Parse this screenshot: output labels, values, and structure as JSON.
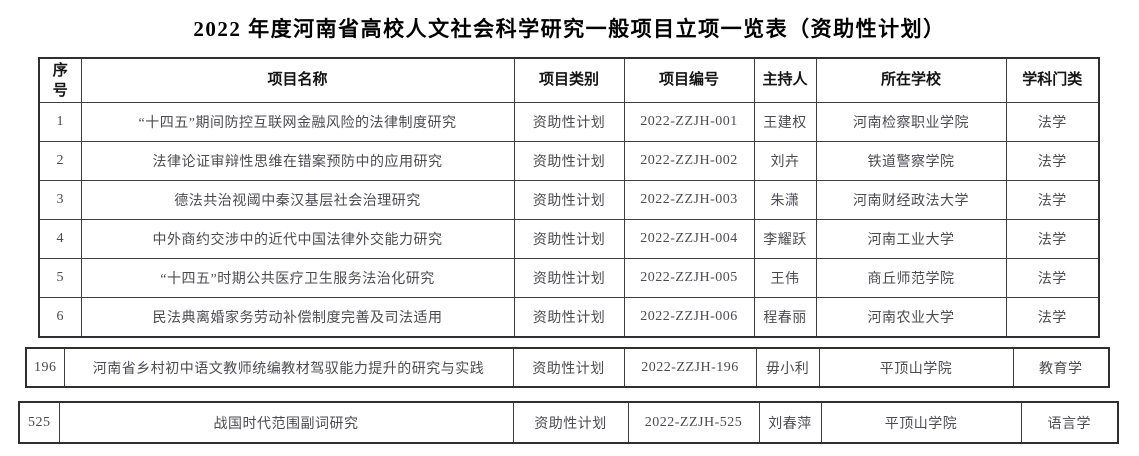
{
  "doc": {
    "title": "2022 年度河南省高校人文社会科学研究一般项目立项一览表（资助性计划）"
  },
  "table": {
    "headers": [
      "序号",
      "项目名称",
      "项目类别",
      "项目编号",
      "主持人",
      "所在学校",
      "学科门类"
    ],
    "rows": [
      [
        "1",
        "“十四五”期间防控互联网金融风险的法律制度研究",
        "资助性计划",
        "2022-ZZJH-001",
        "王建权",
        "河南检察职业学院",
        "法学"
      ],
      [
        "2",
        "法律论证审辩性思维在错案预防中的应用研究",
        "资助性计划",
        "2022-ZZJH-002",
        "刘卉",
        "铁道警察学院",
        "法学"
      ],
      [
        "3",
        "德法共治视阈中秦汉基层社会治理研究",
        "资助性计划",
        "2022-ZZJH-003",
        "朱潇",
        "河南财经政法大学",
        "法学"
      ],
      [
        "4",
        "中外商约交涉中的近代中国法律外交能力研究",
        "资助性计划",
        "2022-ZZJH-004",
        "李耀跃",
        "河南工业大学",
        "法学"
      ],
      [
        "5",
        "“十四五”时期公共医疗卫生服务法治化研究",
        "资助性计划",
        "2022-ZZJH-005",
        "王伟",
        "商丘师范学院",
        "法学"
      ],
      [
        "6",
        "民法典离婚家务劳动补偿制度完善及司法适用",
        "资助性计划",
        "2022-ZZJH-006",
        "程春丽",
        "河南农业大学",
        "法学"
      ]
    ]
  },
  "fragments": {
    "row196": [
      "196",
      "河南省乡村初中语文教师统编教材驾驭能力提升的研究与实践",
      "资助性计划",
      "2022-ZZJH-196",
      "毋小利",
      "平顶山学院",
      "教育学"
    ],
    "row525": [
      "525",
      "战国时代范围副词研究",
      "资助性计划",
      "2022-ZZJH-525",
      "刘春萍",
      "平顶山学院",
      "语言学"
    ]
  },
  "colors": {
    "border": "#3e3e42",
    "outer_border": "#2f2f33",
    "title_text": "#000000",
    "header_text": "#141414",
    "body_text": "#4b4b52",
    "background": "#ffffff"
  }
}
